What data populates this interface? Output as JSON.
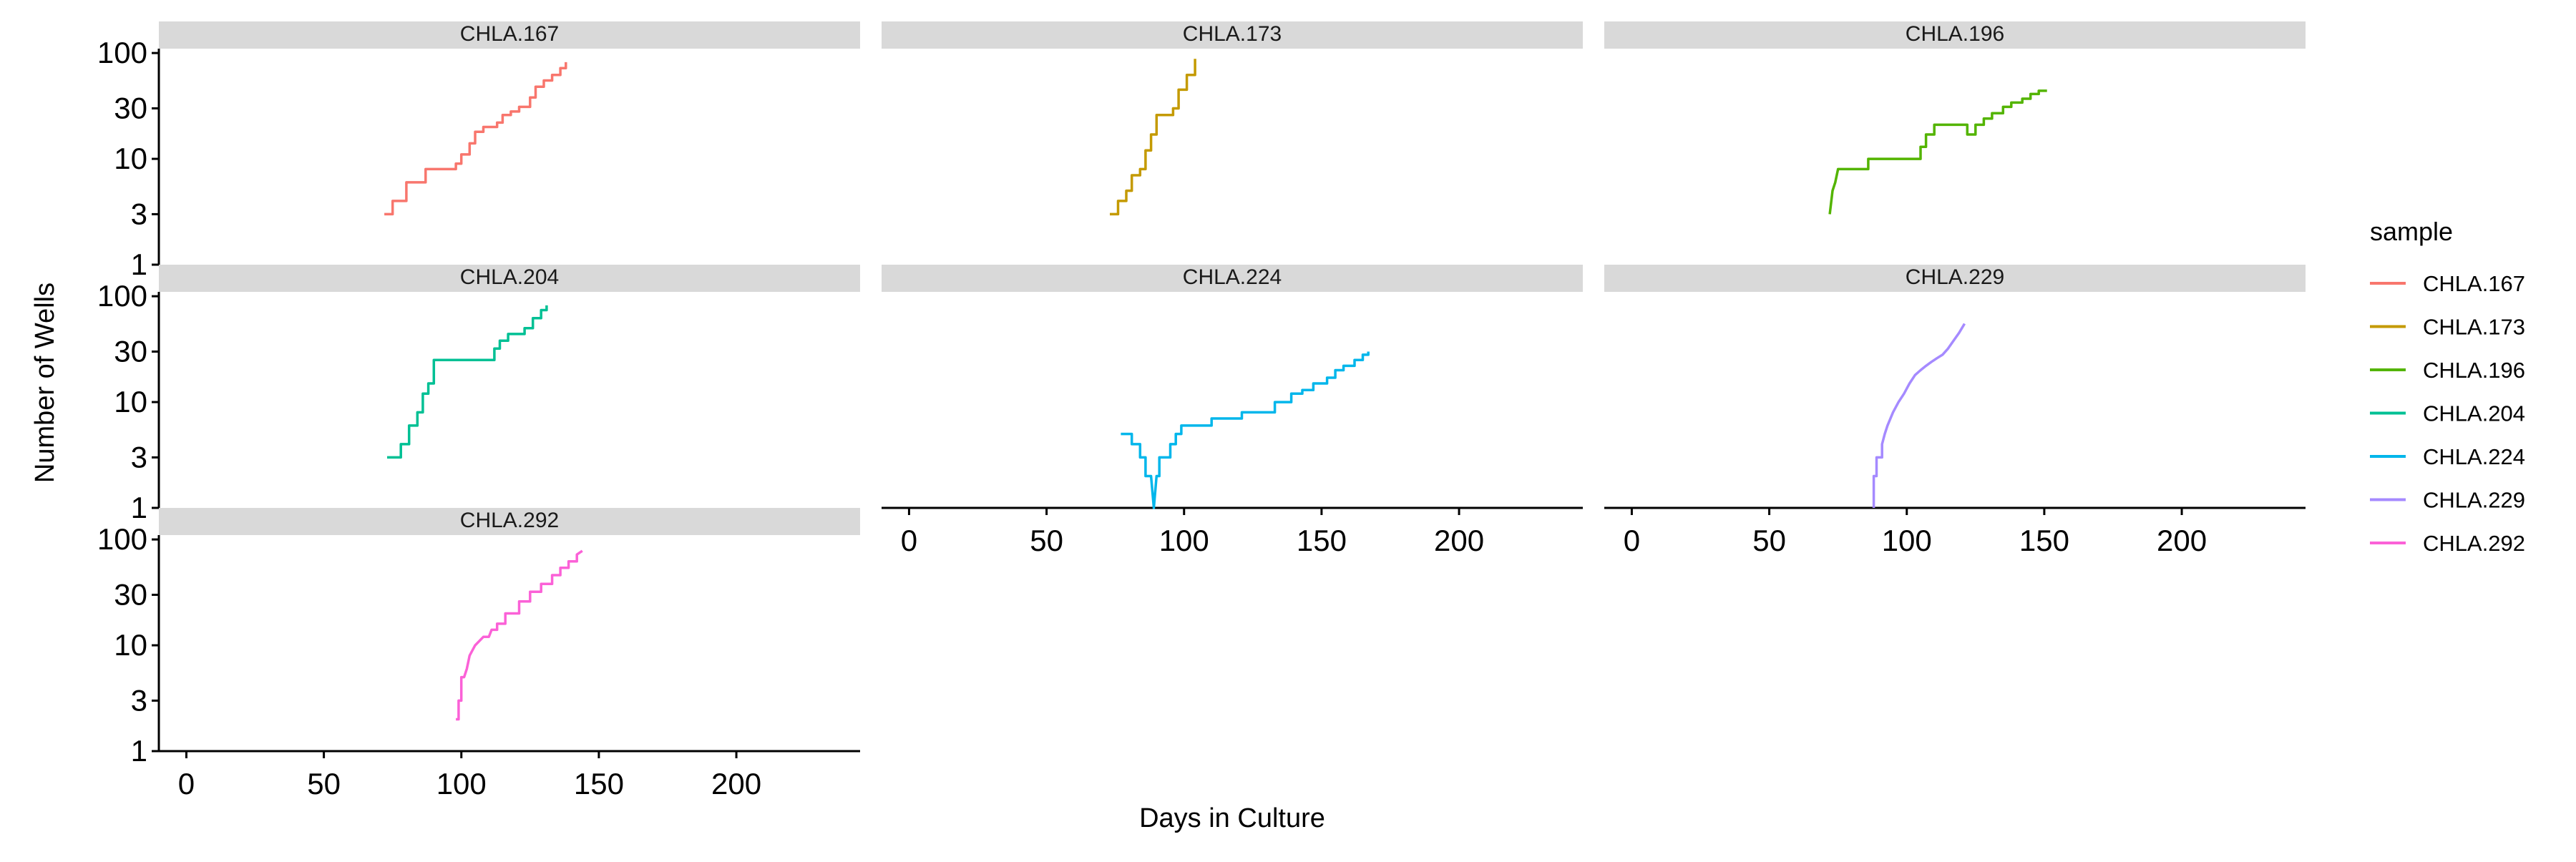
{
  "chart_data": {
    "type": "line",
    "facet_by": "sample",
    "xlabel": "Days in Culture",
    "ylabel": "Number of Wells",
    "x_scale": "linear",
    "y_scale": "log10",
    "xlim": [
      -10,
      245
    ],
    "ylim": [
      1,
      110
    ],
    "x_ticks": [
      0,
      50,
      100,
      150,
      200
    ],
    "y_ticks": [
      1,
      3,
      10,
      30,
      100
    ],
    "legend": {
      "title": "sample",
      "position": "right"
    },
    "panels": [
      {
        "name": "CHLA.167",
        "color": "#F8766D",
        "points": [
          [
            72,
            3
          ],
          [
            75,
            3
          ],
          [
            75,
            4
          ],
          [
            80,
            4
          ],
          [
            80,
            6
          ],
          [
            87,
            6
          ],
          [
            87,
            8
          ],
          [
            98,
            8
          ],
          [
            98,
            9
          ],
          [
            100,
            9
          ],
          [
            100,
            11
          ],
          [
            103,
            11
          ],
          [
            103,
            14
          ],
          [
            105,
            14
          ],
          [
            105,
            18
          ],
          [
            108,
            18
          ],
          [
            108,
            20
          ],
          [
            113,
            20
          ],
          [
            113,
            22
          ],
          [
            115,
            22
          ],
          [
            115,
            26
          ],
          [
            118,
            26
          ],
          [
            118,
            28
          ],
          [
            121,
            28
          ],
          [
            121,
            31
          ],
          [
            125,
            31
          ],
          [
            125,
            38
          ],
          [
            127,
            38
          ],
          [
            127,
            48
          ],
          [
            130,
            48
          ],
          [
            130,
            55
          ],
          [
            133,
            55
          ],
          [
            133,
            62
          ],
          [
            136,
            62
          ],
          [
            136,
            72
          ],
          [
            138,
            72
          ],
          [
            138,
            82
          ]
        ]
      },
      {
        "name": "CHLA.173",
        "color": "#C49A00",
        "points": [
          [
            73,
            3
          ],
          [
            76,
            3
          ],
          [
            76,
            4
          ],
          [
            79,
            4
          ],
          [
            79,
            5
          ],
          [
            81,
            5
          ],
          [
            81,
            7
          ],
          [
            84,
            7
          ],
          [
            84,
            8
          ],
          [
            86,
            8
          ],
          [
            86,
            12
          ],
          [
            88,
            12
          ],
          [
            88,
            17
          ],
          [
            90,
            17
          ],
          [
            90,
            26
          ],
          [
            96,
            26
          ],
          [
            96,
            30
          ],
          [
            98,
            30
          ],
          [
            98,
            45
          ],
          [
            101,
            45
          ],
          [
            101,
            62
          ],
          [
            104,
            62
          ],
          [
            104,
            88
          ]
        ]
      },
      {
        "name": "CHLA.196",
        "color": "#53B400",
        "points": [
          [
            72,
            3
          ],
          [
            73,
            5
          ],
          [
            74,
            6
          ],
          [
            75,
            8
          ],
          [
            86,
            8
          ],
          [
            86,
            10
          ],
          [
            105,
            10
          ],
          [
            105,
            13
          ],
          [
            107,
            13
          ],
          [
            107,
            17
          ],
          [
            110,
            17
          ],
          [
            110,
            21
          ],
          [
            122,
            21
          ],
          [
            122,
            17
          ],
          [
            125,
            17
          ],
          [
            125,
            21
          ],
          [
            128,
            21
          ],
          [
            128,
            24
          ],
          [
            131,
            24
          ],
          [
            131,
            27
          ],
          [
            135,
            27
          ],
          [
            135,
            31
          ],
          [
            138,
            31
          ],
          [
            138,
            34
          ],
          [
            142,
            34
          ],
          [
            142,
            37
          ],
          [
            145,
            37
          ],
          [
            145,
            41
          ],
          [
            148,
            41
          ],
          [
            148,
            44
          ],
          [
            151,
            44
          ]
        ]
      },
      {
        "name": "CHLA.204",
        "color": "#00C094",
        "points": [
          [
            73,
            3
          ],
          [
            78,
            3
          ],
          [
            78,
            4
          ],
          [
            81,
            4
          ],
          [
            81,
            6
          ],
          [
            84,
            6
          ],
          [
            84,
            8
          ],
          [
            86,
            8
          ],
          [
            86,
            12
          ],
          [
            88,
            12
          ],
          [
            88,
            15
          ],
          [
            90,
            15
          ],
          [
            90,
            25
          ],
          [
            112,
            25
          ],
          [
            112,
            32
          ],
          [
            114,
            32
          ],
          [
            114,
            38
          ],
          [
            117,
            38
          ],
          [
            117,
            44
          ],
          [
            123,
            44
          ],
          [
            123,
            50
          ],
          [
            126,
            50
          ],
          [
            126,
            62
          ],
          [
            129,
            62
          ],
          [
            129,
            74
          ],
          [
            131,
            74
          ],
          [
            131,
            82
          ]
        ]
      },
      {
        "name": "CHLA.224",
        "color": "#00B6EB",
        "points": [
          [
            77,
            5
          ],
          [
            81,
            5
          ],
          [
            81,
            4
          ],
          [
            84,
            4
          ],
          [
            84,
            3
          ],
          [
            86,
            3
          ],
          [
            86,
            2
          ],
          [
            88,
            2
          ],
          [
            89,
            1
          ],
          [
            90,
            2
          ],
          [
            91,
            2
          ],
          [
            91,
            3
          ],
          [
            95,
            3
          ],
          [
            95,
            4
          ],
          [
            97,
            4
          ],
          [
            97,
            5
          ],
          [
            99,
            5
          ],
          [
            99,
            6
          ],
          [
            110,
            6
          ],
          [
            110,
            7
          ],
          [
            121,
            7
          ],
          [
            121,
            8
          ],
          [
            133,
            8
          ],
          [
            133,
            10
          ],
          [
            139,
            10
          ],
          [
            139,
            12
          ],
          [
            143,
            12
          ],
          [
            143,
            13
          ],
          [
            147,
            13
          ],
          [
            147,
            15
          ],
          [
            152,
            15
          ],
          [
            152,
            17
          ],
          [
            155,
            17
          ],
          [
            155,
            20
          ],
          [
            158,
            20
          ],
          [
            158,
            22
          ],
          [
            162,
            22
          ],
          [
            162,
            25
          ],
          [
            165,
            25
          ],
          [
            165,
            28
          ],
          [
            167,
            28
          ],
          [
            167,
            30
          ]
        ]
      },
      {
        "name": "CHLA.229",
        "color": "#A58AFF",
        "points": [
          [
            88,
            1
          ],
          [
            88,
            2
          ],
          [
            89,
            2
          ],
          [
            89,
            3
          ],
          [
            91,
            3
          ],
          [
            91,
            4
          ],
          [
            92,
            5
          ],
          [
            93,
            6
          ],
          [
            95,
            8
          ],
          [
            97,
            10
          ],
          [
            99,
            12
          ],
          [
            101,
            15
          ],
          [
            103,
            18
          ],
          [
            105,
            20
          ],
          [
            107,
            22
          ],
          [
            109,
            24
          ],
          [
            111,
            26
          ],
          [
            113,
            28
          ],
          [
            115,
            32
          ],
          [
            117,
            38
          ],
          [
            119,
            45
          ],
          [
            121,
            55
          ]
        ]
      },
      {
        "name": "CHLA.292",
        "color": "#FB61D7",
        "points": [
          [
            98,
            2
          ],
          [
            99,
            2
          ],
          [
            99,
            3
          ],
          [
            100,
            3
          ],
          [
            100,
            5
          ],
          [
            101,
            5
          ],
          [
            102,
            6
          ],
          [
            103,
            8
          ],
          [
            105,
            10
          ],
          [
            108,
            12
          ],
          [
            110,
            12
          ],
          [
            111,
            14
          ],
          [
            113,
            14
          ],
          [
            113,
            16
          ],
          [
            116,
            16
          ],
          [
            116,
            20
          ],
          [
            121,
            20
          ],
          [
            121,
            26
          ],
          [
            125,
            26
          ],
          [
            125,
            32
          ],
          [
            129,
            32
          ],
          [
            129,
            38
          ],
          [
            133,
            38
          ],
          [
            133,
            46
          ],
          [
            136,
            46
          ],
          [
            136,
            54
          ],
          [
            139,
            54
          ],
          [
            139,
            62
          ],
          [
            142,
            62
          ],
          [
            142,
            72
          ],
          [
            144,
            78
          ]
        ]
      }
    ]
  }
}
